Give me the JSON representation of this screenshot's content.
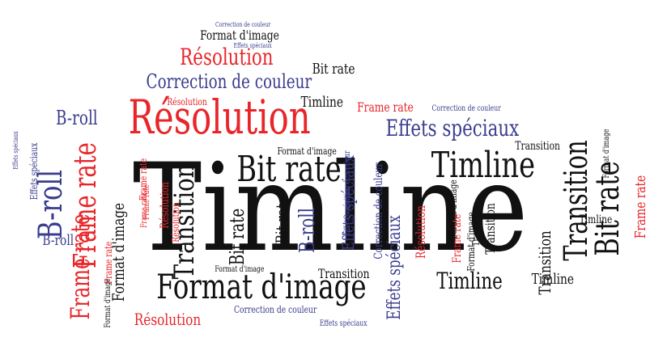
{
  "colors": {
    "black": "#111111",
    "red": "#e8262a",
    "blue": "#3a3c8e"
  },
  "words": [
    {
      "text": "Timline",
      "color": "black"
    },
    {
      "text": "Résolution",
      "color": "red"
    },
    {
      "text": "Format d'image",
      "color": "black"
    },
    {
      "text": "Bit rate",
      "color": "black"
    },
    {
      "text": "Timline",
      "color": "black"
    },
    {
      "text": "Bit rate",
      "color": "black"
    },
    {
      "text": "Transition",
      "color": "black"
    },
    {
      "text": "B-roll",
      "color": "blue"
    },
    {
      "text": "Frame rate",
      "color": "red"
    },
    {
      "text": "Frame rate",
      "color": "red"
    },
    {
      "text": "Effets spéciaux",
      "color": "blue"
    },
    {
      "text": "Correction de couleur",
      "color": "blue"
    },
    {
      "text": "Résolution",
      "color": "red"
    },
    {
      "text": "Timline",
      "color": "black"
    },
    {
      "text": "Transition",
      "color": "black"
    },
    {
      "text": "Format d'image",
      "color": "black"
    },
    {
      "text": "Timline",
      "color": "black"
    },
    {
      "text": "B-roll",
      "color": "blue"
    },
    {
      "text": "Effets spéciaux",
      "color": "blue"
    },
    {
      "text": "Timline",
      "color": "black"
    },
    {
      "text": "Résolution",
      "color": "red"
    },
    {
      "text": "Timline",
      "color": "black"
    },
    {
      "text": "Bit rate",
      "color": "black"
    },
    {
      "text": "B-roll",
      "color": "blue"
    },
    {
      "text": "Bit rate",
      "color": "black"
    },
    {
      "text": "Format d'image",
      "color": "black"
    },
    {
      "text": "Transition",
      "color": "black"
    },
    {
      "text": "B-roll",
      "color": "blue"
    },
    {
      "text": "Frame rate",
      "color": "red"
    },
    {
      "text": "Transition",
      "color": "black"
    },
    {
      "text": "Format d'image",
      "color": "black"
    },
    {
      "text": "Format d'image",
      "color": "black"
    },
    {
      "text": "Effets spéciaux",
      "color": "blue"
    },
    {
      "text": "Correction de couleur",
      "color": "blue"
    },
    {
      "text": "Frame rate",
      "color": "red"
    },
    {
      "text": "Transition",
      "color": "black"
    },
    {
      "text": "Résolution",
      "color": "red"
    },
    {
      "text": "Résolution",
      "color": "red"
    },
    {
      "text": "Frame rate",
      "color": "red"
    },
    {
      "text": "Bit rate",
      "color": "black"
    },
    {
      "text": "Format d'image",
      "color": "black"
    },
    {
      "text": "Frame rate",
      "color": "red"
    },
    {
      "text": "Résolution",
      "color": "red"
    },
    {
      "text": "Correction de couleur",
      "color": "blue"
    },
    {
      "text": "Correction de couleur",
      "color": "blue"
    },
    {
      "text": "Effets spéciaux",
      "color": "blue"
    },
    {
      "text": "Effets spéciaux",
      "color": "blue"
    },
    {
      "text": "Format d'image",
      "color": "black"
    },
    {
      "text": "Transition",
      "color": "black"
    },
    {
      "text": "Frame rate",
      "color": "red"
    },
    {
      "text": "Effets spéciaux",
      "color": "blue"
    },
    {
      "text": "Format d'image",
      "color": "black"
    },
    {
      "text": "Format d'image",
      "color": "black"
    },
    {
      "text": "Transition",
      "color": "black"
    },
    {
      "text": "Résolution",
      "color": "red"
    },
    {
      "text": "Frame rate",
      "color": "red"
    },
    {
      "text": "Correction de couleur",
      "color": "blue"
    },
    {
      "text": "Effets spéciaux",
      "color": "blue"
    },
    {
      "text": "Effets spéciaux",
      "color": "blue"
    },
    {
      "text": "Correction de couleur",
      "color": "blue"
    },
    {
      "text": "Frame rate",
      "color": "red"
    }
  ]
}
